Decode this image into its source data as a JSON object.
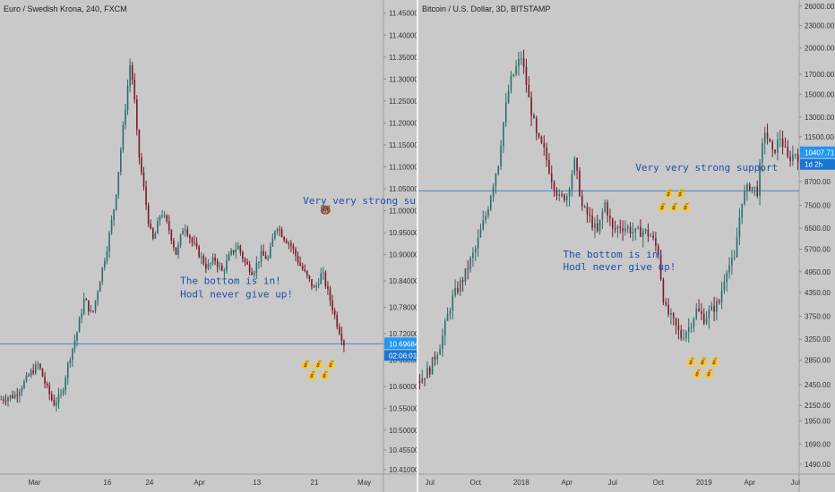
{
  "chart_data": [
    {
      "type": "candlestick",
      "title": "Euro / Swedish Krona, 240, FXCM",
      "y_axis_side": "right",
      "ylim": [
        10.4,
        11.48
      ],
      "y_ticks": [
        "10.41000",
        "10.45500",
        "10.50000",
        "10.55000",
        "10.60000",
        "10.66000",
        "10.72000",
        "10.78000",
        "10.84000",
        "10.90000",
        "10.95000",
        "11.00000",
        "11.05000",
        "11.10000",
        "11.15000",
        "11.20000",
        "11.25000",
        "11.30000",
        "11.35000",
        "11.40000",
        "11.45000"
      ],
      "y_tick_values": [
        10.41,
        10.455,
        10.5,
        10.55,
        10.6,
        10.66,
        10.72,
        10.78,
        10.84,
        10.9,
        10.95,
        11.0,
        11.05,
        11.1,
        11.15,
        11.2,
        11.25,
        11.3,
        11.35,
        11.4,
        11.45
      ],
      "x_ticks": [
        "Mar",
        "16",
        "24",
        "Apr",
        "13",
        "21",
        "May"
      ],
      "x_range": [
        0,
        100
      ],
      "x_tick_values": [
        9,
        28,
        39,
        52,
        67,
        82,
        95
      ],
      "price_path_x": [
        0,
        4,
        8,
        10,
        12,
        14,
        16,
        18,
        20,
        22,
        24,
        26,
        28,
        30,
        32,
        34,
        35,
        36,
        37,
        38,
        39,
        40,
        42,
        44,
        46,
        48,
        50,
        52,
        54,
        56,
        58,
        60,
        62,
        64,
        66,
        68,
        70,
        72,
        74,
        76,
        78,
        80,
        82,
        84,
        86,
        88,
        90
      ],
      "price_path_y": [
        10.57,
        10.58,
        10.63,
        10.65,
        10.6,
        10.56,
        10.58,
        10.66,
        10.72,
        10.8,
        10.76,
        10.84,
        10.92,
        11.02,
        11.18,
        11.34,
        11.26,
        11.14,
        11.08,
        11.02,
        10.96,
        10.93,
        11.0,
        10.96,
        10.9,
        10.97,
        10.93,
        10.9,
        10.87,
        10.89,
        10.86,
        10.9,
        10.92,
        10.88,
        10.86,
        10.9,
        10.89,
        10.97,
        10.94,
        10.92,
        10.88,
        10.85,
        10.82,
        10.86,
        10.8,
        10.74,
        10.69
      ],
      "current_price": "10.69684",
      "current_price_value": 10.69684,
      "countdown": "02:06:01",
      "annotations": [
        {
          "text": "Very very strong support",
          "x": 79,
          "y": 11.015
        },
        {
          "text": "The bottom is in!",
          "x": 47,
          "y": 10.833
        },
        {
          "text": "Hodl never give up!",
          "x": 47,
          "y": 10.802
        }
      ],
      "emoji_note": "bear face and money bag emojis",
      "colors": {
        "up": "#2d6d6d",
        "down": "#7a1a2a",
        "line": "#4a86c6",
        "badge": "#2196f3"
      }
    },
    {
      "type": "candlestick",
      "title": "Bitcoin / U.S. Dollar, 3D, BITSTAMP",
      "y_axis_side": "right",
      "y_scale": "log",
      "ylim": [
        1400,
        27000
      ],
      "y_ticks": [
        "1490.00",
        "1690.00",
        "1950.00",
        "2150.00",
        "2450.00",
        "2850.00",
        "3250.00",
        "3750.00",
        "4350.00",
        "4950.00",
        "5700.00",
        "6500.00",
        "7500.00",
        "8700.00",
        "9800.00",
        "11500.00",
        "13000.00",
        "15000.00",
        "17000.00",
        "20000.00",
        "23000.00",
        "26000.00"
      ],
      "y_tick_values": [
        1490,
        1690,
        1950,
        2150,
        2450,
        2850,
        3250,
        3750,
        4350,
        4950,
        5700,
        6500,
        7500,
        8700,
        9800,
        11500,
        13000,
        15000,
        17000,
        20000,
        23000,
        26000
      ],
      "x_ticks": [
        "Jul",
        "Oct",
        "2018",
        "Apr",
        "Jul",
        "Oct",
        "2019",
        "Apr",
        "Jul"
      ],
      "x_range": [
        0,
        100
      ],
      "x_tick_values": [
        3,
        15,
        27,
        39,
        51,
        63,
        75,
        87,
        99
      ],
      "price_path_x": [
        0,
        3,
        6,
        9,
        12,
        15,
        18,
        21,
        24,
        27,
        29,
        31,
        33,
        35,
        37,
        39,
        41,
        43,
        45,
        47,
        49,
        51,
        53,
        55,
        57,
        59,
        61,
        63,
        64,
        65,
        67,
        69,
        71,
        73,
        75,
        77,
        79,
        81,
        83,
        85,
        87,
        89,
        91,
        93,
        95,
        97,
        99,
        100
      ],
      "price_path_y": [
        2500,
        2700,
        3200,
        4200,
        4800,
        5700,
        7200,
        9800,
        16000,
        19000,
        14500,
        11500,
        10500,
        8900,
        7800,
        8000,
        9800,
        7400,
        6900,
        6300,
        7600,
        6400,
        6600,
        6500,
        6300,
        6400,
        6200,
        5600,
        4400,
        3900,
        3600,
        3300,
        3500,
        3900,
        3700,
        3900,
        4100,
        5100,
        5300,
        7800,
        8500,
        8200,
        12000,
        10300,
        11500,
        10000,
        10407,
        10100
      ],
      "current_price": "10407.71",
      "current_price_value": 10407.71,
      "countdown": "1d 2h",
      "horizontal_line": 8200,
      "annotations": [
        {
          "text": "Very very strong support",
          "x": 57,
          "y": 9300
        },
        {
          "text": "The bottom is in!",
          "x": 38,
          "y": 5400
        },
        {
          "text": "Hodl never give up!",
          "x": 38,
          "y": 5000
        }
      ],
      "emoji_note": "money bag emojis",
      "colors": {
        "up": "#2d6d6d",
        "down": "#7a1a2a",
        "line": "#4a86c6",
        "badge": "#2196f3"
      }
    }
  ]
}
